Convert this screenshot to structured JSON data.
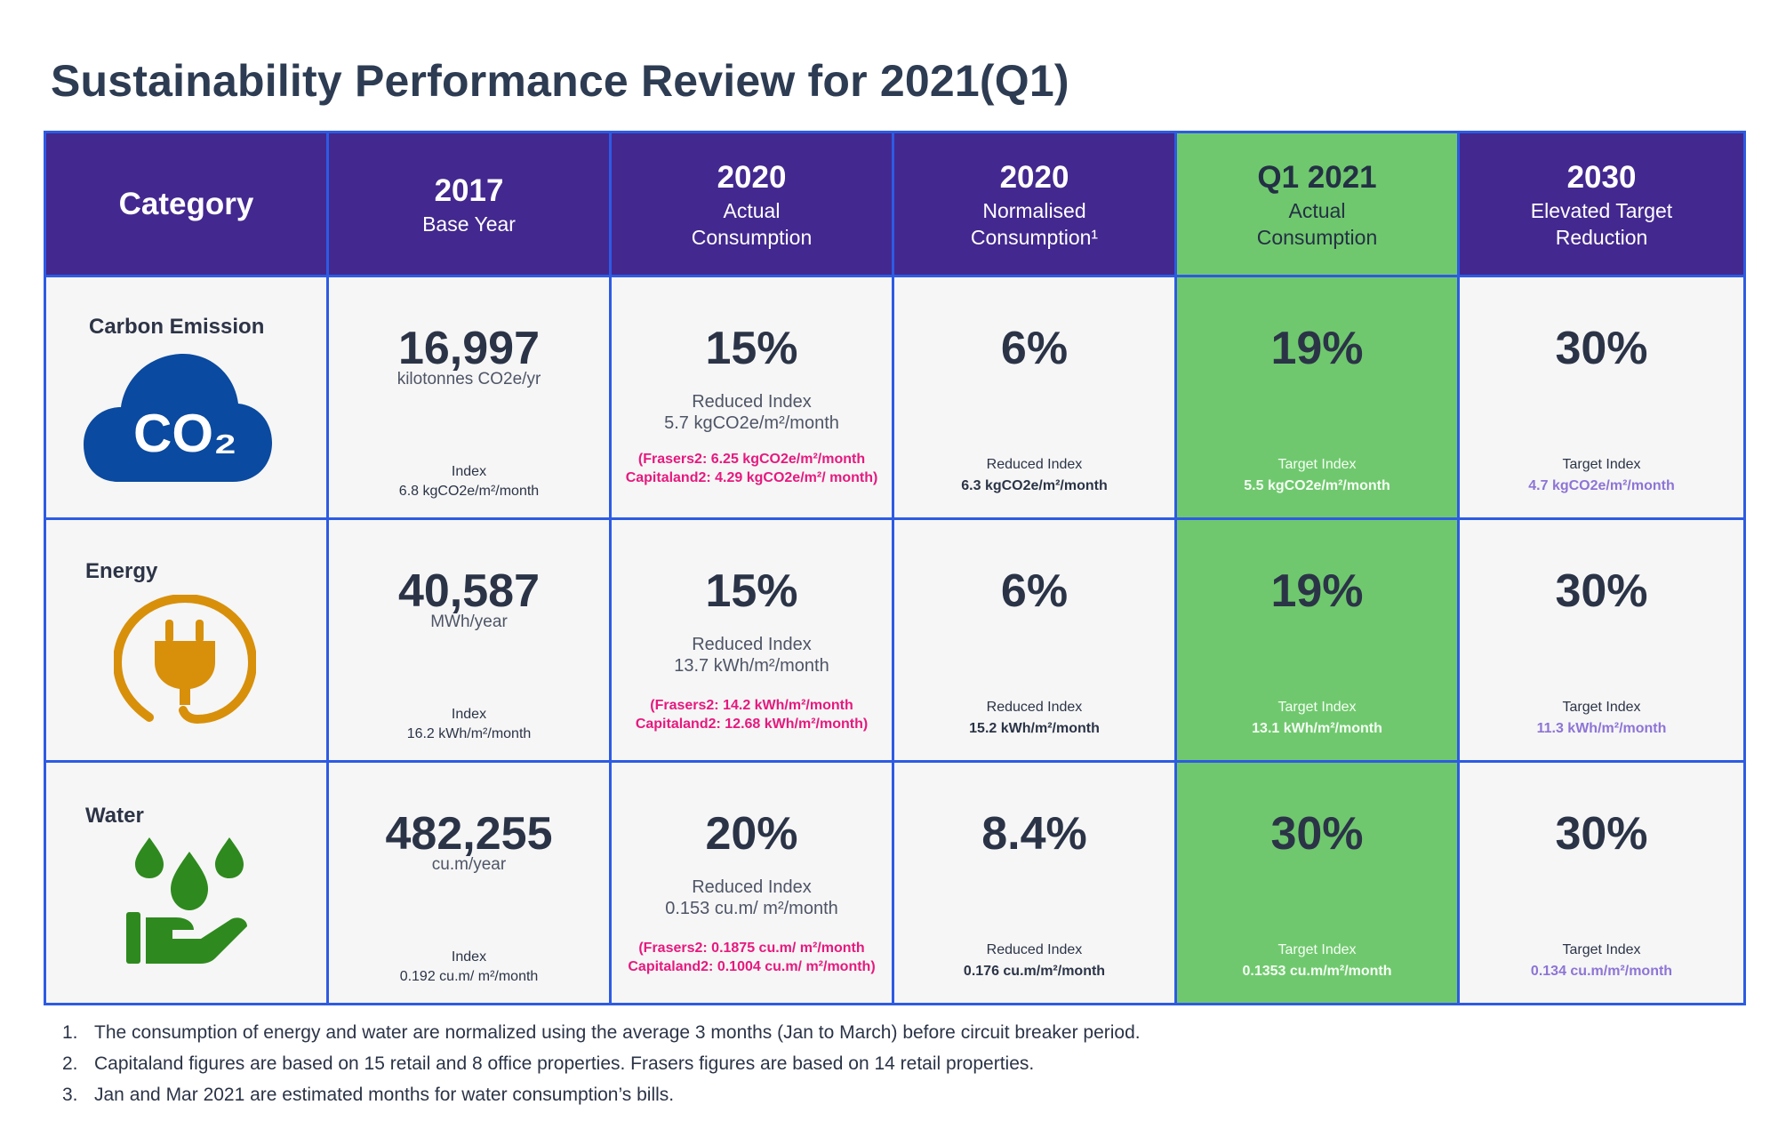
{
  "title": "Sustainability Performance Review for 2021(Q1)",
  "header": [
    {
      "year": "Category",
      "sub": ""
    },
    {
      "year": "2017",
      "sub": "Base Year"
    },
    {
      "year": "2020",
      "sub": "Actual Consumption"
    },
    {
      "year": "2020",
      "sub": "Normalised Consumption¹"
    },
    {
      "year": "Q1 2021",
      "sub": "Actual Consumption"
    },
    {
      "year": "2030",
      "sub": "Elevated Target Reduction"
    }
  ],
  "rows": [
    {
      "category": "Carbon Emission",
      "icon": "co2-cloud-icon",
      "icon_text": "CO₂",
      "base": {
        "value": "16,997",
        "unit": "kilotonnes CO2e/yr",
        "index_label": "Index",
        "index_value": "6.8 kgCO2e/m²/month"
      },
      "actual2020": {
        "value": "15%",
        "label": "Reduced  Index",
        "label_value": "5.7 kgCO2e/m²/month",
        "note": "(Frasers2: 6.25 kgCO2e/m²/month Capitaland2: 4.29 kgCO2e/m²/ month)"
      },
      "norm2020": {
        "value": "6%",
        "index_label": "Reduced Index",
        "index_value": "6.3 kgCO2e/m²/month"
      },
      "q12021": {
        "value": "19%",
        "index_label": "Target Index",
        "index_value": "5.5 kgCO2e/m²/month"
      },
      "target2030": {
        "value": "30%",
        "index_label": "Target Index",
        "index_value": "4.7 kgCO2e/m²/month"
      }
    },
    {
      "category": "Energy",
      "icon": "power-plug-icon",
      "base": {
        "value": "40,587",
        "unit": "MWh/year",
        "index_label": "Index",
        "index_value": "16.2 kWh/m²/month"
      },
      "actual2020": {
        "value": "15%",
        "label": "Reduced Index",
        "label_value": "13.7 kWh/m²/month",
        "note": "(Frasers2: 14.2 kWh/m²/month Capitaland2: 12.68 kWh/m²/month)"
      },
      "norm2020": {
        "value": "6%",
        "index_label": "Reduced Index",
        "index_value": "15.2 kWh/m²/month"
      },
      "q12021": {
        "value": "19%",
        "index_label": "Target Index",
        "index_value": "13.1 kWh/m²/month"
      },
      "target2030": {
        "value": "30%",
        "index_label": "Target Index",
        "index_value": "11.3 kWh/m²/month"
      }
    },
    {
      "category": "Water",
      "icon": "water-drops-hand-icon",
      "base": {
        "value": "482,255",
        "unit": "cu.m/year",
        "index_label": "Index",
        "index_value": "0.192 cu.m/ m²/month"
      },
      "actual2020": {
        "value": "20%",
        "label": "Reduced  Index",
        "label_value": "0.153 cu.m/ m²/month",
        "note": "(Frasers2: 0.1875 cu.m/ m²/month Capitaland2: 0.1004 cu.m/ m²/month)"
      },
      "norm2020": {
        "value": "8.4%",
        "index_label": "Reduced Index",
        "index_value": "0.176 cu.m/m²/month"
      },
      "q12021": {
        "value": "30%",
        "index_label": "Target Index",
        "index_value": "0.1353 cu.m/m²/month"
      },
      "target2030": {
        "value": "30%",
        "index_label": "Target Index",
        "index_value": "0.134 cu.m/m²/month"
      }
    }
  ],
  "notes": [
    {
      "num": "1.",
      "text": "The consumption of energy and water are normalized using the average 3 months (Jan to March) before circuit breaker period."
    },
    {
      "num": "2.",
      "text": "Capitaland figures are based on 15 retail and 8 office properties. Frasers figures are based on 14 retail properties."
    },
    {
      "num": "3.",
      "text": "Jan and Mar 2021 are estimated months for water consumption’s bills."
    }
  ],
  "colors": {
    "header": "#43288f",
    "highlight": "#70c86e",
    "grid": "#2d5be3",
    "pink": "#e6197e",
    "purple": "#8d74d6",
    "co2": "#0a4aa0",
    "energy": "#d8900a",
    "water": "#2e8a1e"
  }
}
